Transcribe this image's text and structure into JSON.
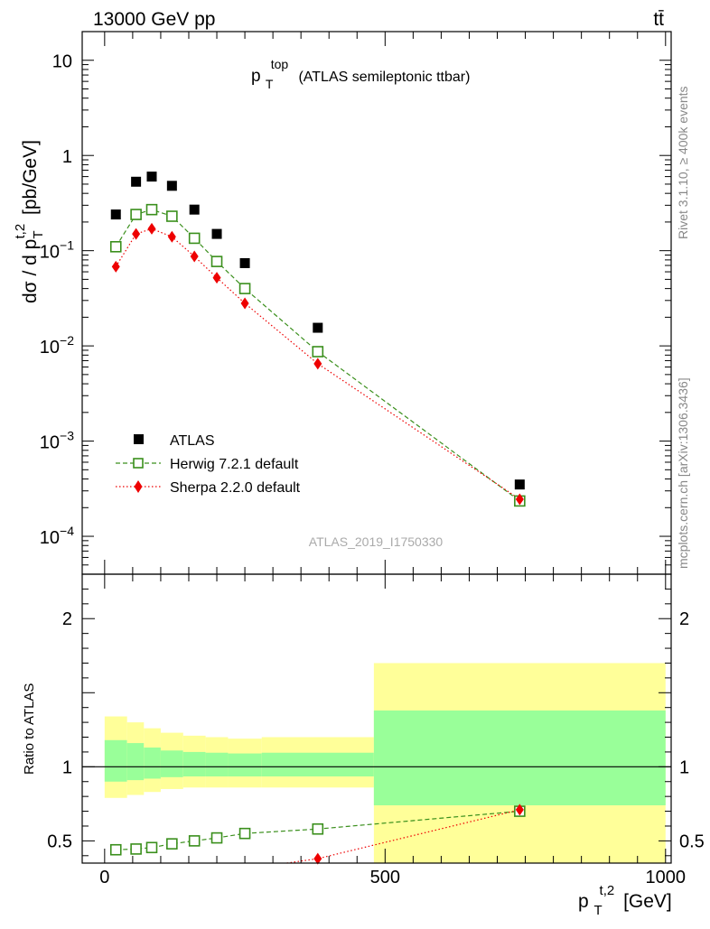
{
  "header": {
    "energy_label": "13000 GeV pp",
    "process_label": "tt̄"
  },
  "side_labels": {
    "rivet": "Rivet 3.1.10, ≥ 400k events",
    "mcplots": "mcplots.cern.ch [arXiv:1306.3436]"
  },
  "colors": {
    "atlas": "#000000",
    "herwig": "#3a8f1c",
    "sherpa": "#ee0000",
    "band_inner": "#99ff99",
    "band_outer": "#ffff99"
  },
  "chart_data": [
    {
      "type": "scatter",
      "panel": "main",
      "title_main": "p",
      "title_sup": "top",
      "title_sub": "T",
      "title_rest": "(ATLAS semileptonic ttbar)",
      "ylabel": "dσ / d p_T^{t,2} [pb/GeV]",
      "yscale": "log",
      "ylim": [
        4e-05,
        20
      ],
      "xlim": [
        -40,
        1010
      ],
      "yticks": [
        {
          "value": 10,
          "base": "10",
          "exp": ""
        },
        {
          "value": 1,
          "base": "1",
          "exp": ""
        },
        {
          "value": 0.1,
          "base": "10",
          "exp": "−1"
        },
        {
          "value": 0.01,
          "base": "10",
          "exp": "−2"
        },
        {
          "value": 0.001,
          "base": "10",
          "exp": "−3"
        },
        {
          "value": 0.0001,
          "base": "10",
          "exp": "−4"
        }
      ],
      "watermark": "ATLAS_2019_I1750330",
      "legend_position": "lower-left",
      "series": [
        {
          "name": "ATLAS",
          "style": "square-filled",
          "x": [
            20,
            56,
            84,
            120,
            160,
            200,
            250,
            380,
            740
          ],
          "y": [
            0.24,
            0.53,
            0.6,
            0.48,
            0.27,
            0.15,
            0.074,
            0.0155,
            0.00035
          ]
        },
        {
          "name": "Herwig 7.2.1 default",
          "style": "square-open-dashed",
          "x": [
            20,
            56,
            84,
            120,
            160,
            200,
            250,
            380,
            740
          ],
          "y": [
            0.11,
            0.24,
            0.27,
            0.23,
            0.135,
            0.077,
            0.04,
            0.0087,
            0.000235
          ]
        },
        {
          "name": "Sherpa 2.2.0 default",
          "style": "diamond-dotted",
          "x": [
            20,
            56,
            84,
            120,
            160,
            200,
            250,
            380,
            740
          ],
          "y": [
            0.068,
            0.15,
            0.17,
            0.14,
            0.087,
            0.052,
            0.028,
            0.0065,
            0.000245
          ]
        }
      ]
    },
    {
      "type": "line",
      "panel": "ratio",
      "ylabel": "Ratio to ATLAS",
      "xlabel_main": "p",
      "xlabel_sup": "t,2",
      "xlabel_sub": "T",
      "xlabel_rest": "[GeV]",
      "ylim": [
        0.35,
        2.3
      ],
      "xlim": [
        -40,
        1010
      ],
      "yticks": [
        0.5,
        1,
        2
      ],
      "xticks": [
        0,
        500,
        1000
      ],
      "reference": 1,
      "bands": [
        {
          "x0": 0,
          "x1": 40,
          "inner": [
            0.9,
            1.18
          ],
          "outer": [
            0.79,
            1.34
          ]
        },
        {
          "x0": 40,
          "x1": 70,
          "inner": [
            0.91,
            1.16
          ],
          "outer": [
            0.81,
            1.3
          ]
        },
        {
          "x0": 70,
          "x1": 100,
          "inner": [
            0.92,
            1.13
          ],
          "outer": [
            0.83,
            1.26
          ]
        },
        {
          "x0": 100,
          "x1": 140,
          "inner": [
            0.93,
            1.11
          ],
          "outer": [
            0.85,
            1.23
          ]
        },
        {
          "x0": 140,
          "x1": 180,
          "inner": [
            0.935,
            1.1
          ],
          "outer": [
            0.86,
            1.21
          ]
        },
        {
          "x0": 180,
          "x1": 220,
          "inner": [
            0.935,
            1.095
          ],
          "outer": [
            0.86,
            1.2
          ]
        },
        {
          "x0": 220,
          "x1": 280,
          "inner": [
            0.935,
            1.09
          ],
          "outer": [
            0.86,
            1.19
          ]
        },
        {
          "x0": 280,
          "x1": 480,
          "inner": [
            0.935,
            1.095
          ],
          "outer": [
            0.86,
            1.2
          ]
        },
        {
          "x0": 480,
          "x1": 1000,
          "inner": [
            0.74,
            1.38
          ],
          "outer": [
            0.35,
            1.7
          ]
        }
      ],
      "series": [
        {
          "name": "Herwig 7.2.1 default",
          "style": "square-open-dashed",
          "x": [
            20,
            56,
            84,
            120,
            160,
            200,
            250,
            380,
            740
          ],
          "y": [
            0.44,
            0.445,
            0.455,
            0.48,
            0.5,
            0.52,
            0.55,
            0.58,
            0.7
          ]
        },
        {
          "name": "Sherpa 2.2.0 default",
          "style": "diamond-dotted",
          "x": [
            380,
            740
          ],
          "y": [
            0.38,
            0.71
          ],
          "entry": [
            325,
            0.35
          ]
        }
      ]
    }
  ]
}
